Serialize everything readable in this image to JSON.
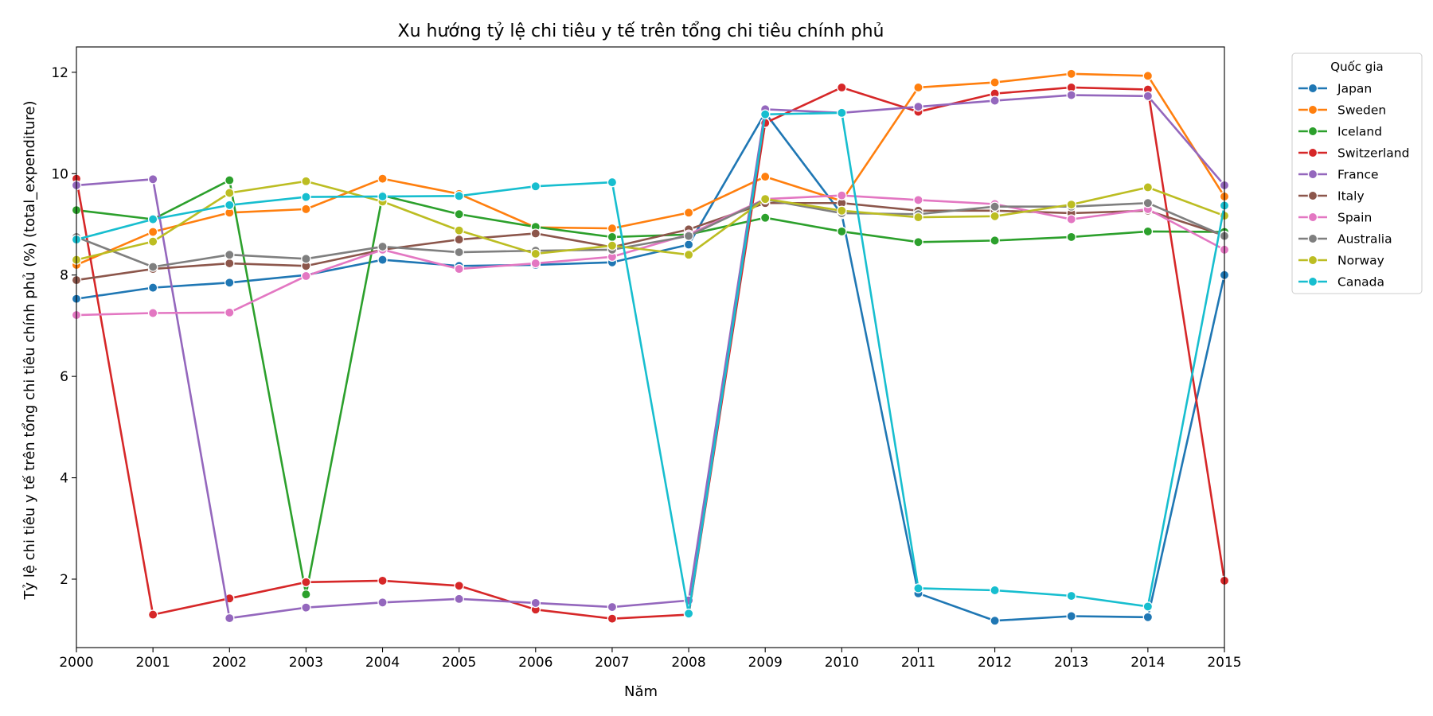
{
  "chart_data": {
    "type": "line",
    "title": "Xu hướng tỷ lệ chi tiêu y tế trên tổng chi tiêu chính phủ",
    "xlabel": "Năm",
    "ylabel": "Tỷ lệ chi tiêu y tế trên tổng chi tiêu chính phủ (%) (total_expenditure)",
    "xlim": [
      2000,
      2015
    ],
    "ylim": [
      0.65,
      12.5
    ],
    "x_ticks": [
      2000,
      2001,
      2002,
      2003,
      2004,
      2005,
      2006,
      2007,
      2008,
      2009,
      2010,
      2011,
      2012,
      2013,
      2014,
      2015
    ],
    "y_ticks": [
      2,
      4,
      6,
      8,
      10,
      12
    ],
    "grid": false,
    "legend": {
      "title": "Quốc gia",
      "position": "outside-top-right"
    },
    "x": [
      2000,
      2001,
      2002,
      2003,
      2004,
      2005,
      2006,
      2007,
      2008,
      2009,
      2010,
      2011,
      2012,
      2013,
      2014,
      2015
    ],
    "series": [
      {
        "name": "Japan",
        "color": "#1f77b4",
        "values": [
          7.53,
          7.75,
          7.85,
          8.0,
          8.3,
          8.18,
          8.2,
          8.25,
          8.6,
          11.2,
          9.2,
          1.72,
          1.18,
          1.27,
          1.25,
          8.0
        ]
      },
      {
        "name": "Sweden",
        "color": "#ff7f0e",
        "values": [
          8.2,
          8.85,
          9.23,
          9.3,
          9.9,
          9.6,
          8.94,
          8.92,
          9.23,
          9.94,
          9.46,
          11.7,
          11.8,
          11.97,
          11.93,
          9.55
        ]
      },
      {
        "name": "Iceland",
        "color": "#2ca02c",
        "values": [
          9.28,
          9.1,
          9.87,
          1.7,
          9.57,
          9.2,
          8.95,
          8.75,
          8.8,
          9.13,
          8.86,
          8.65,
          8.68,
          8.75,
          8.86,
          8.85
        ]
      },
      {
        "name": "Switzerland",
        "color": "#d62728",
        "values": [
          9.9,
          1.3,
          1.62,
          1.94,
          1.97,
          1.87,
          1.4,
          1.22,
          1.3,
          11.0,
          11.7,
          11.22,
          11.58,
          11.7,
          11.66,
          1.97
        ]
      },
      {
        "name": "France",
        "color": "#9467bd",
        "values": [
          9.77,
          9.89,
          1.23,
          1.44,
          1.54,
          1.61,
          1.53,
          1.45,
          1.58,
          11.27,
          11.2,
          11.32,
          11.44,
          11.55,
          11.53,
          9.77
        ]
      },
      {
        "name": "Italy",
        "color": "#8c564b",
        "values": [
          7.9,
          8.12,
          8.23,
          8.18,
          8.5,
          8.7,
          8.82,
          8.55,
          8.9,
          9.42,
          9.42,
          9.27,
          9.27,
          9.22,
          9.27,
          8.78
        ]
      },
      {
        "name": "Spain",
        "color": "#e377c2",
        "values": [
          7.21,
          7.25,
          7.26,
          7.98,
          8.5,
          8.12,
          8.23,
          8.36,
          8.8,
          9.5,
          9.57,
          9.48,
          9.4,
          9.1,
          9.3,
          8.5
        ]
      },
      {
        "name": "Australia",
        "color": "#7f7f7f",
        "values": [
          8.75,
          8.16,
          8.4,
          8.32,
          8.56,
          8.45,
          8.48,
          8.5,
          8.77,
          9.49,
          9.22,
          9.2,
          9.35,
          9.35,
          9.42,
          8.77
        ]
      },
      {
        "name": "Norway",
        "color": "#bcbd22",
        "values": [
          8.3,
          8.66,
          9.62,
          9.85,
          9.45,
          8.88,
          8.42,
          8.58,
          8.4,
          9.5,
          9.27,
          9.14,
          9.16,
          9.39,
          9.73,
          9.17
        ]
      },
      {
        "name": "Canada",
        "color": "#17becf",
        "values": [
          8.7,
          9.1,
          9.38,
          9.54,
          9.55,
          9.56,
          9.75,
          9.83,
          1.32,
          11.17,
          11.2,
          1.82,
          1.78,
          1.67,
          1.46,
          9.37
        ]
      }
    ]
  }
}
